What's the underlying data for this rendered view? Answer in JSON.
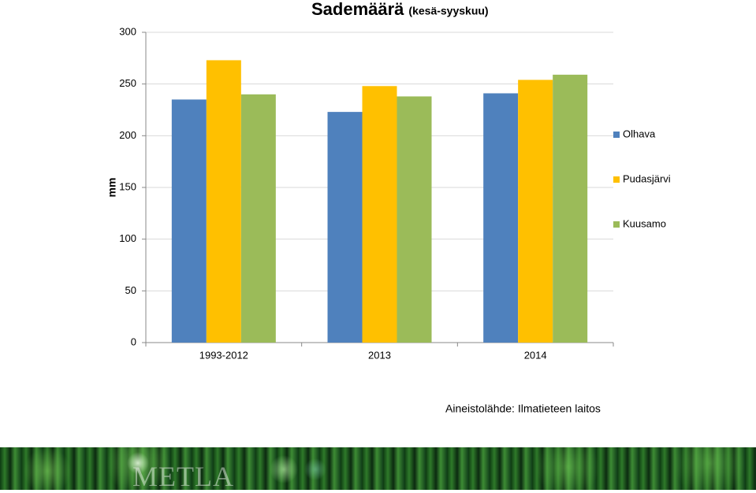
{
  "chart_data": {
    "type": "bar",
    "title": "Sademäärä",
    "subtitle": "(kesä-syyskuu)",
    "y_label": "mm",
    "categories": [
      "1993-2012",
      "2013",
      "2014"
    ],
    "series": [
      {
        "name": "Olhava",
        "color": "#4f81bd",
        "values": [
          235,
          223,
          241
        ]
      },
      {
        "name": "Pudasjärvi",
        "color": "#ffc000",
        "values": [
          273,
          248,
          254
        ]
      },
      {
        "name": "Kuusamo",
        "color": "#9bbb59",
        "values": [
          240,
          238,
          259
        ]
      }
    ],
    "ylim": [
      0,
      300
    ],
    "yticks": [
      0,
      50,
      100,
      150,
      200,
      250,
      300
    ],
    "grid": true,
    "legend": "right",
    "source": "Aineistolähde: Ilmatieteen laitos"
  },
  "footer": {
    "logo": "METLA"
  }
}
